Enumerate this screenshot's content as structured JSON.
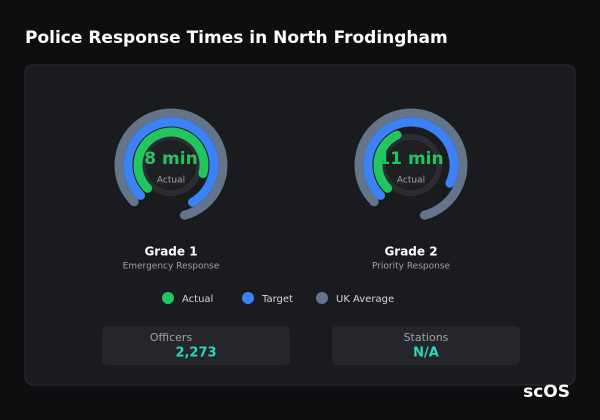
{
  "title": "Police Response Times in North Frodingham",
  "legend": [
    {
      "name": "Actual",
      "color": "#22c55e"
    },
    {
      "name": "Target",
      "color": "#3b82f6"
    },
    {
      "name": "UK Average",
      "color": "#64748b"
    }
  ],
  "chart_data": [
    {
      "type": "radial",
      "title": "Grade 1",
      "subtitle": "Emergency Response",
      "center_label": "Actual",
      "rlim": [
        0,
        12
      ],
      "series": [
        {
          "values": [
            8
          ],
          "value_labels": [
            "8 min"
          ]
        },
        {
          "values": [
            9.5
          ]
        },
        {
          "values": [
            10
          ]
        }
      ]
    },
    {
      "type": "radial",
      "title": "Grade 2",
      "subtitle": "Priority Response",
      "center_label": "Actual",
      "rlim": [
        0,
        36
      ],
      "series": [
        {
          "values": [
            11
          ],
          "value_labels": [
            "11 min"
          ]
        },
        {
          "values": [
            25
          ]
        },
        {
          "values": [
            30
          ]
        }
      ]
    }
  ],
  "stats": [
    {
      "label": "Officers",
      "value": "2,273"
    },
    {
      "label": "Stations",
      "value": "N/A"
    }
  ],
  "logo": "scOS"
}
